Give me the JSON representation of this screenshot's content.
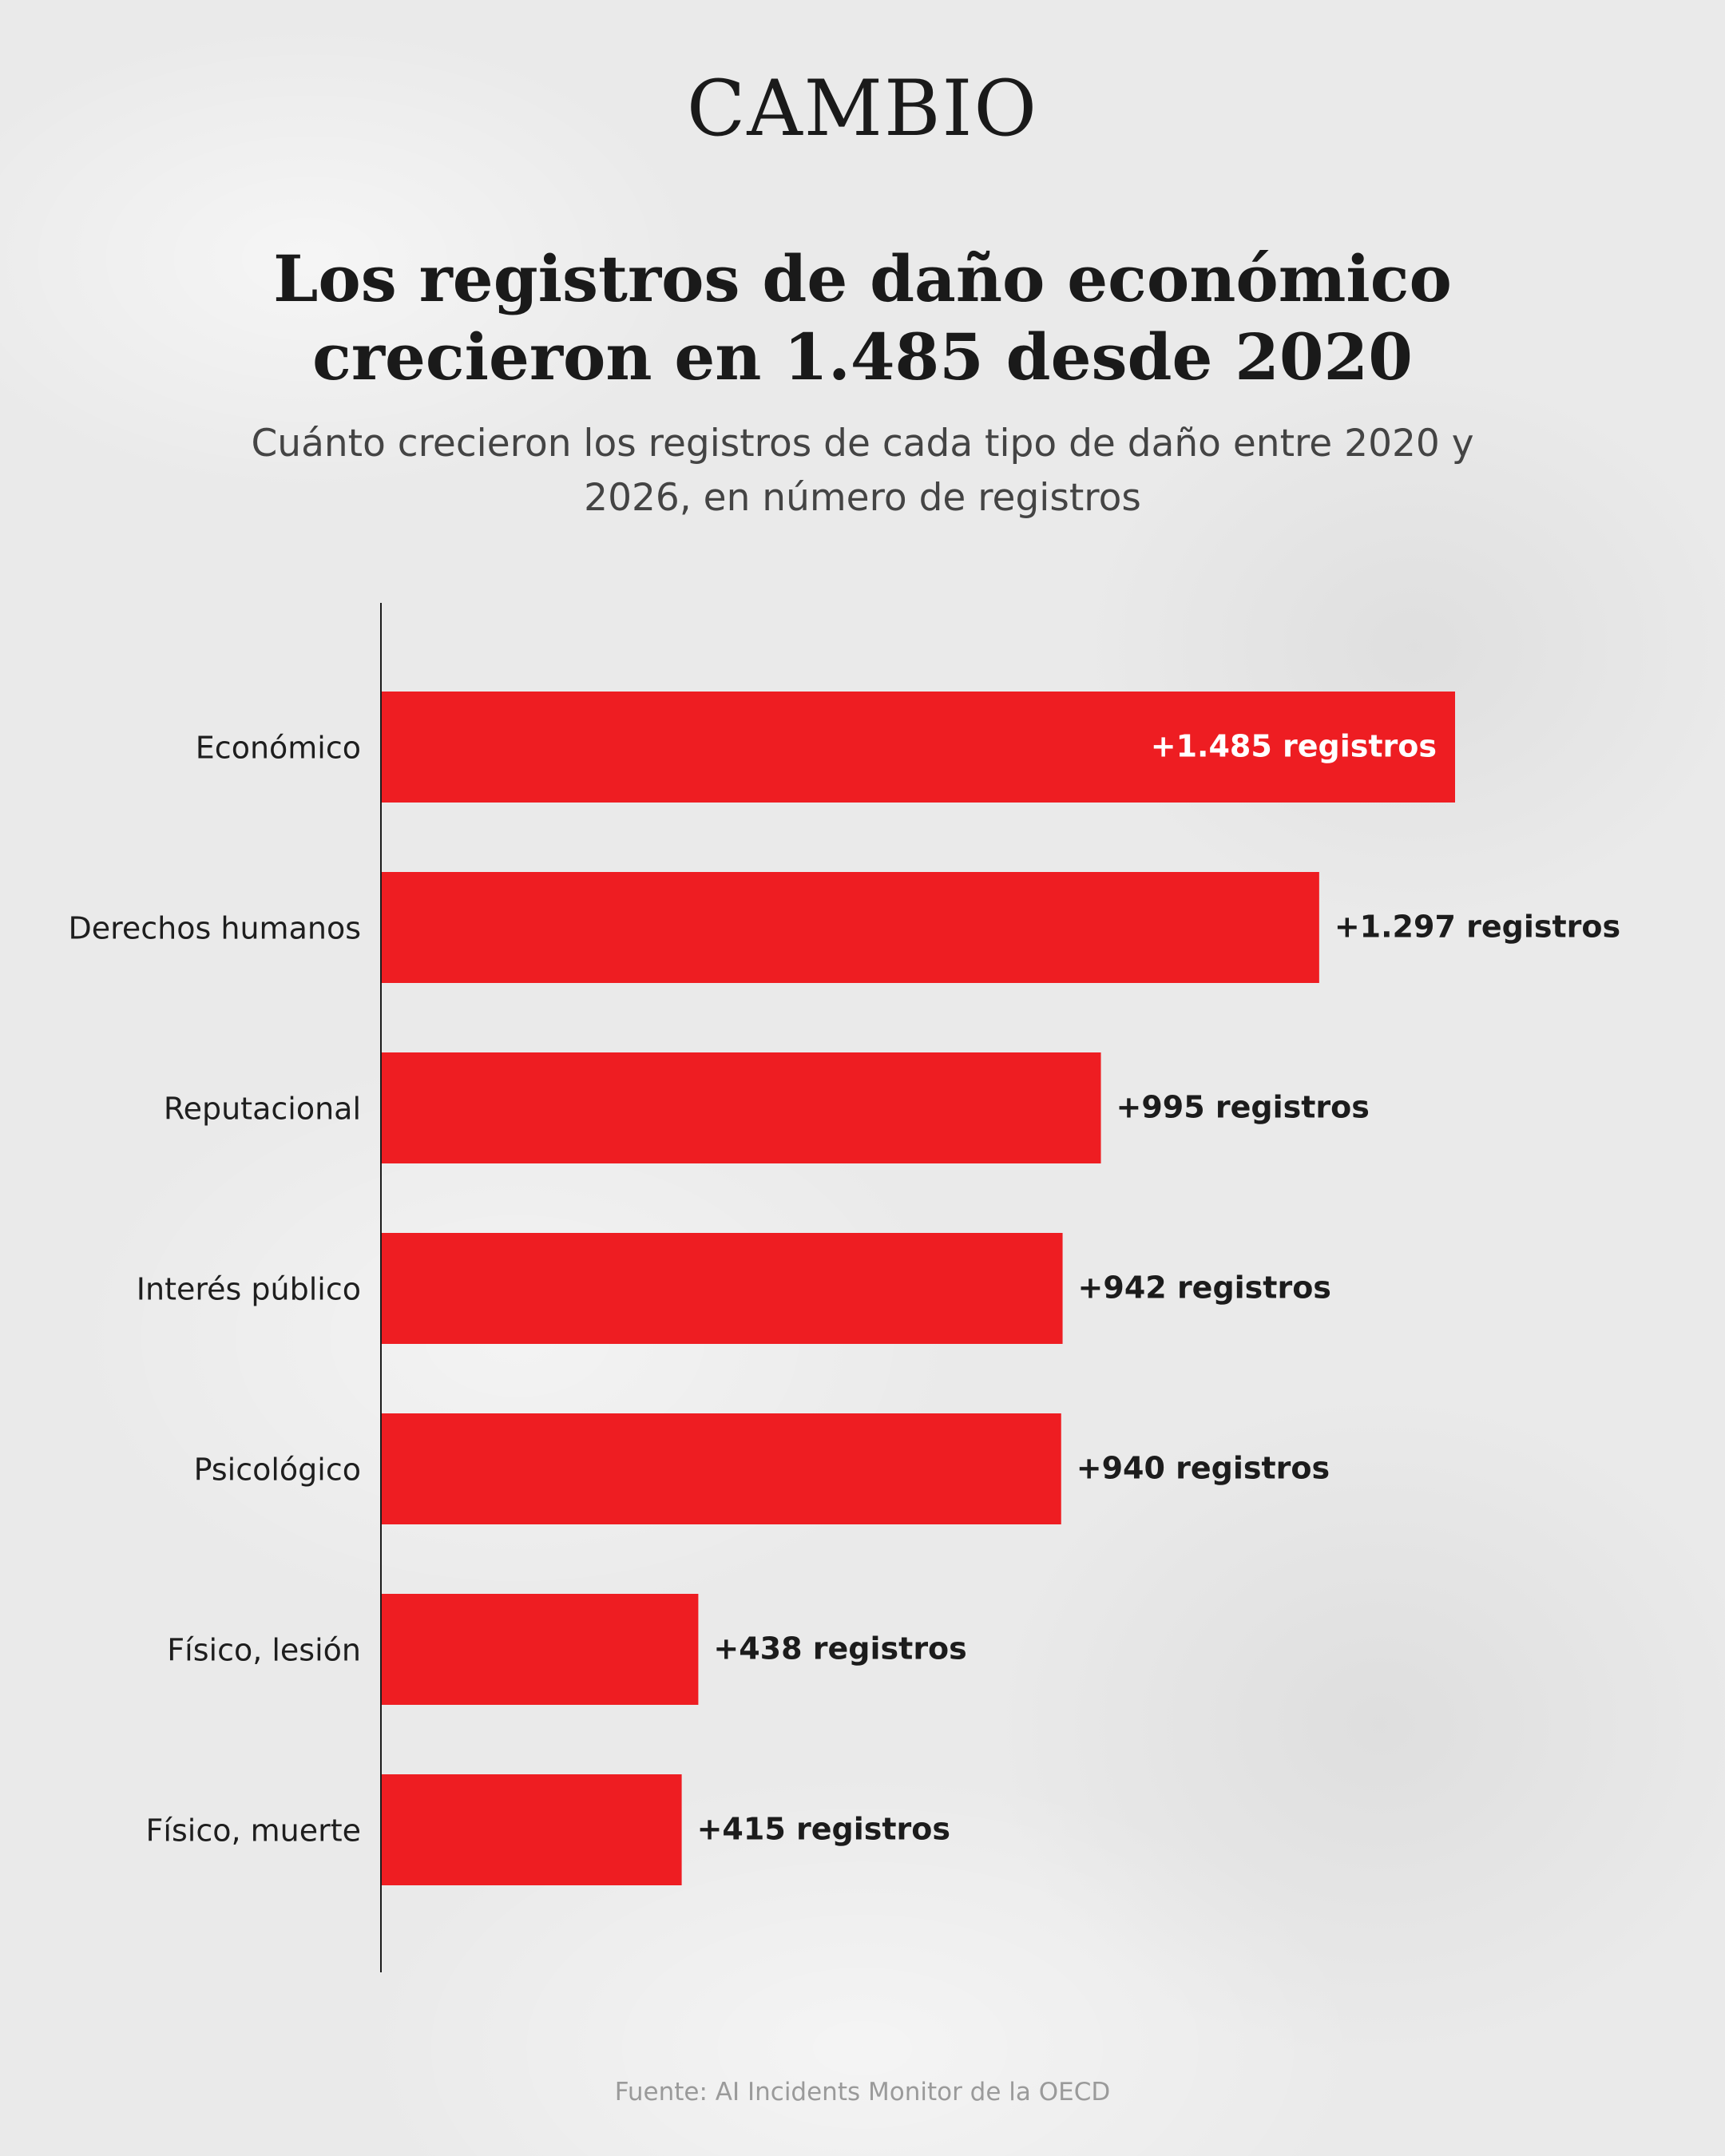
{
  "brand": "CAMBIO",
  "chart_data": {
    "type": "bar",
    "orientation": "horizontal",
    "title": "Los registros de daño económico crecieron en 1.485 desde 2020",
    "subtitle": "Cuánto crecieron los registros de cada tipo de daño entre 2020 y 2026, en número de registros",
    "categories": [
      "Económico",
      "Derechos humanos",
      "Reputacional",
      "Interés público",
      "Psicológico",
      "Físico, lesión",
      "Físico, muerte"
    ],
    "values": [
      1485,
      1297,
      995,
      942,
      940,
      438,
      415
    ],
    "value_labels": [
      "+1.485 registros",
      "+1.297 registros",
      "+995 registros",
      "+942 registros",
      "+940 registros",
      "+438 registros",
      "+415 registros"
    ],
    "xlim": [
      0,
      1485
    ],
    "grid": false,
    "legend": "none",
    "bar_color": "#ee1d22",
    "label_color_inside": "#ffffff",
    "label_color_outside": "#1c1c1c",
    "axis_color": "#1c1c1c"
  },
  "source": "Fuente: AI Incidents Monitor de la OECD"
}
